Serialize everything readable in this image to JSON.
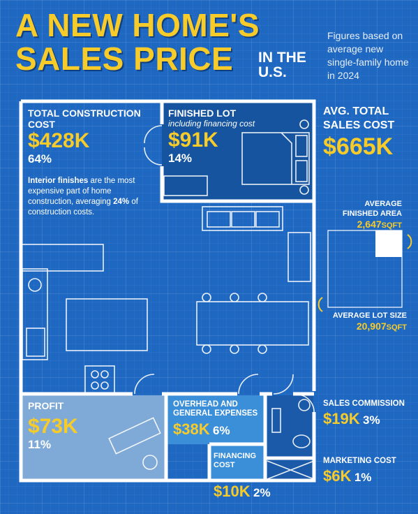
{
  "title": {
    "line1": "A NEW HOME'S",
    "line2": "SALES PRICE",
    "suffix": "IN THE U.S."
  },
  "note": "Figures based on average new single-family home in 2024",
  "construction": {
    "label": "TOTAL CONSTRUCTION COST",
    "value": "$428K",
    "pct": "64%",
    "fact_bold": "Interior finishes",
    "fact_rest": " are the most expensive part of home construction, averaging ",
    "fact_pct": "24%",
    "fact_end": " of construction costs."
  },
  "lot": {
    "label": "FINISHED LOT",
    "sub": "including financing cost",
    "value": "$91K",
    "pct": "14%"
  },
  "total": {
    "label": "AVG. TOTAL SALES COST",
    "value": "$665K"
  },
  "area": {
    "label": "AVERAGE FINISHED AREA",
    "value": "2,647",
    "unit": "SQFT"
  },
  "lotsize": {
    "label": "AVERAGE LOT SIZE",
    "value": "20,907",
    "unit": "SQFT"
  },
  "profit": {
    "label": "PROFIT",
    "value": "$73K",
    "pct": "11%"
  },
  "overhead": {
    "label": "OVERHEAD AND GENERAL EXPENSES",
    "value": "$38K",
    "pct": "6%"
  },
  "financing": {
    "label": "FINANCING COST",
    "value": "$10K",
    "pct": "2%"
  },
  "commission": {
    "label": "SALES COMMISSION",
    "value": "$19K",
    "pct": "3%"
  },
  "marketing": {
    "label": "MARKETING COST",
    "value": "$6K",
    "pct": "1%"
  },
  "colors": {
    "background": "#1f68c1",
    "accent": "#f7cc2a",
    "lot_room": "#16549f",
    "profit_room": "#7fa9d6",
    "overhead_room": "#3b8fd8"
  }
}
